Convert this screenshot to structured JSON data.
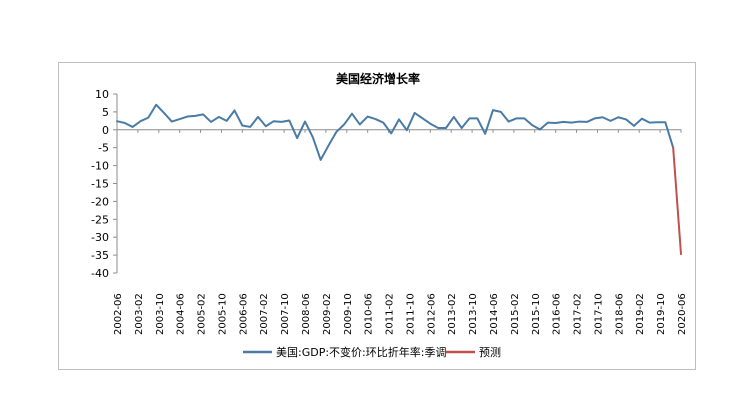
{
  "chart_data": {
    "type": "line",
    "title": "美国经济增长率",
    "xlabel": "",
    "ylabel": "",
    "ylim": [
      -40,
      10
    ],
    "yticks": [
      10,
      5,
      0,
      -5,
      -10,
      -15,
      -20,
      -25,
      -30,
      -35,
      -40
    ],
    "tick_labels": [
      "2002-06",
      "2003-02",
      "2003-10",
      "2004-06",
      "2005-02",
      "2005-10",
      "2006-06",
      "2007-02",
      "2007-10",
      "2008-06",
      "2009-02",
      "2009-10",
      "2010-06",
      "2011-02",
      "2011-10",
      "2012-06",
      "2013-02",
      "2013-10",
      "2014-06",
      "2015-02",
      "2015-10",
      "2016-06",
      "2017-02",
      "2017-10",
      "2018-06",
      "2019-02",
      "2019-10",
      "2020-06"
    ],
    "x_count": 73,
    "grid": false,
    "legend_position": "bottom",
    "series": [
      {
        "name": "美国:GDP:不变价:环比折年率:季调",
        "color": "#4a7ba6",
        "start_index": 0,
        "values": [
          2.4,
          1.9,
          0.8,
          2.4,
          3.4,
          7.0,
          4.7,
          2.3,
          3.0,
          3.7,
          3.9,
          4.3,
          2.2,
          3.6,
          2.5,
          5.4,
          1.2,
          0.8,
          3.6,
          1.0,
          2.4,
          2.2,
          2.6,
          -2.3,
          2.3,
          -2.1,
          -8.4,
          -4.4,
          -0.6,
          1.5,
          4.5,
          1.5,
          3.7,
          3.0,
          2.0,
          -1.0,
          2.9,
          -0.1,
          4.7,
          3.2,
          1.7,
          0.5,
          0.5,
          3.6,
          0.5,
          3.2,
          3.2,
          -1.1,
          5.5,
          5.0,
          2.3,
          3.2,
          3.2,
          1.3,
          0.1,
          2.0,
          1.9,
          2.2,
          2.0,
          2.3,
          2.2,
          3.2,
          3.5,
          2.5,
          3.5,
          2.9,
          1.1,
          3.1,
          2.0,
          2.1,
          2.1,
          -5.0
        ]
      },
      {
        "name": "预测",
        "color": "#c0504d",
        "start_index": 71,
        "values": [
          -5.0,
          -34.7
        ]
      }
    ]
  }
}
